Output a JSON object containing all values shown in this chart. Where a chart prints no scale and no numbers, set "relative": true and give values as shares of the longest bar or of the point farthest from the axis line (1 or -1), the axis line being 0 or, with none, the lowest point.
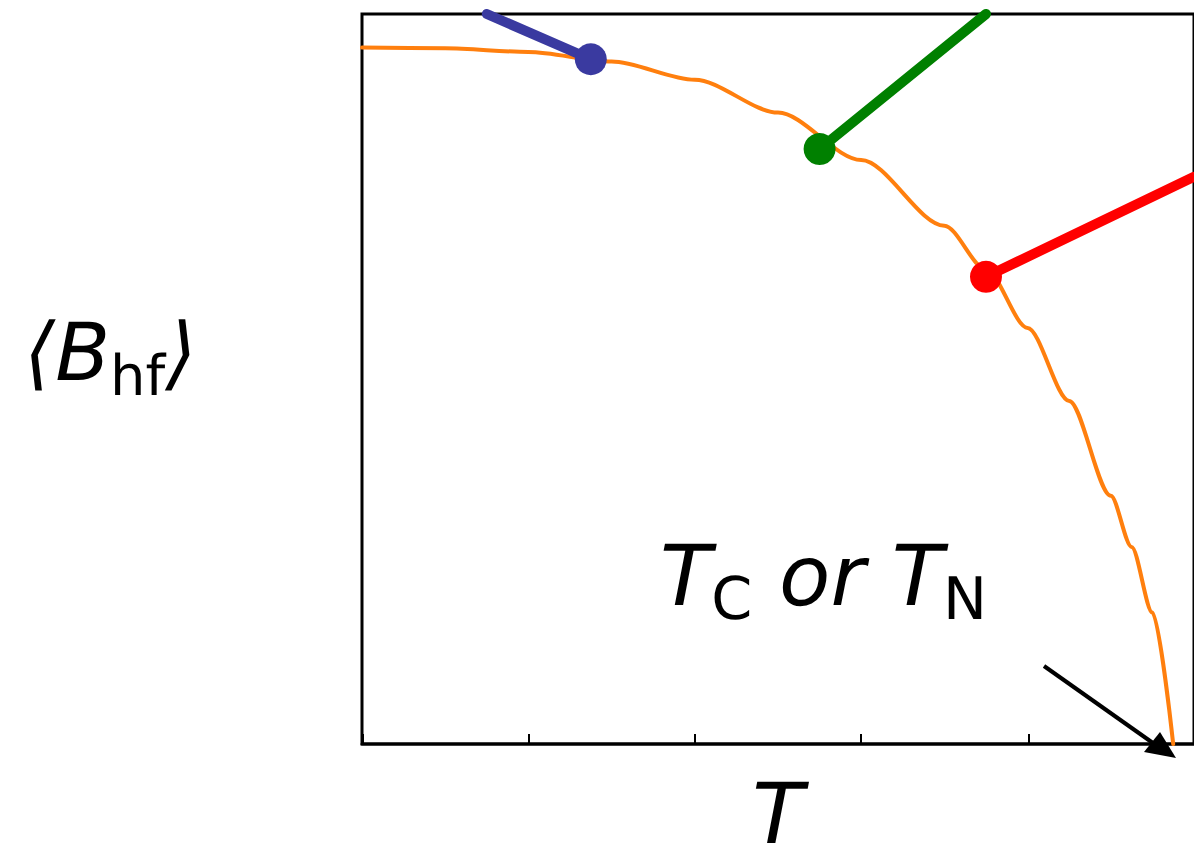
{
  "chart_data": {
    "type": "line",
    "relative": true,
    "xlabel": "T",
    "ylabel": "⟨B$_{hf}$⟩",
    "annotations": [
      "T$_{C}$ or T$_{N}$"
    ],
    "categories": [
      null,
      null,
      null,
      null,
      null,
      null,
      null,
      null,
      null,
      null,
      null,
      null,
      null,
      null,
      null,
      null,
      null,
      null,
      null,
      null,
      null,
      null,
      null,
      null,
      null,
      null,
      null,
      null,
      null,
      null,
      null,
      null,
      null,
      null,
      null,
      null,
      null,
      null,
      null,
      null,
      null
    ],
    "marker": "circle",
    "line_style": "solid",
    "series": [
      {
        "color": "#ff7f0e",
        "marker": "none",
        "values": [
          0.954,
          null,
          null,
          null,
          0.953,
          null,
          null,
          null,
          0.948,
          null,
          null,
          null,
          0.935,
          null,
          null,
          null,
          0.91,
          null,
          null,
          null,
          0.865,
          null,
          null,
          null,
          0.8,
          null,
          null,
          null,
          0.71,
          null,
          0.65,
          null,
          0.57,
          null,
          0.47,
          null,
          0.34,
          0.27,
          0.18,
          0,
          null
        ]
      },
      {
        "color": "#3a3aa0",
        "values": [
          null,
          null,
          null,
          null,
          null,
          null,
          1,
          null,
          null,
          null,
          null,
          0.938,
          null,
          null,
          null,
          null,
          null,
          null,
          null,
          null,
          null,
          null,
          null,
          null,
          null,
          null,
          null,
          null,
          null,
          null,
          null,
          null,
          null,
          null,
          null,
          null,
          null,
          null,
          null,
          null,
          null
        ]
      },
      {
        "color": "#008000",
        "values": [
          null,
          null,
          null,
          null,
          null,
          null,
          null,
          null,
          null,
          null,
          null,
          null,
          null,
          null,
          null,
          null,
          null,
          null,
          null,
          null,
          null,
          null,
          0.815,
          null,
          null,
          null,
          null,
          null,
          null,
          null,
          1,
          null,
          null,
          null,
          null,
          null,
          null,
          null,
          null,
          null,
          null
        ]
      },
      {
        "color": "#ff0000",
        "values": [
          null,
          null,
          null,
          null,
          null,
          null,
          null,
          null,
          null,
          null,
          null,
          null,
          null,
          null,
          null,
          null,
          null,
          null,
          null,
          null,
          null,
          null,
          null,
          null,
          null,
          null,
          null,
          null,
          null,
          null,
          0.64,
          null,
          null,
          null,
          null,
          null,
          null,
          null,
          null,
          null,
          0.777
        ]
      }
    ]
  }
}
